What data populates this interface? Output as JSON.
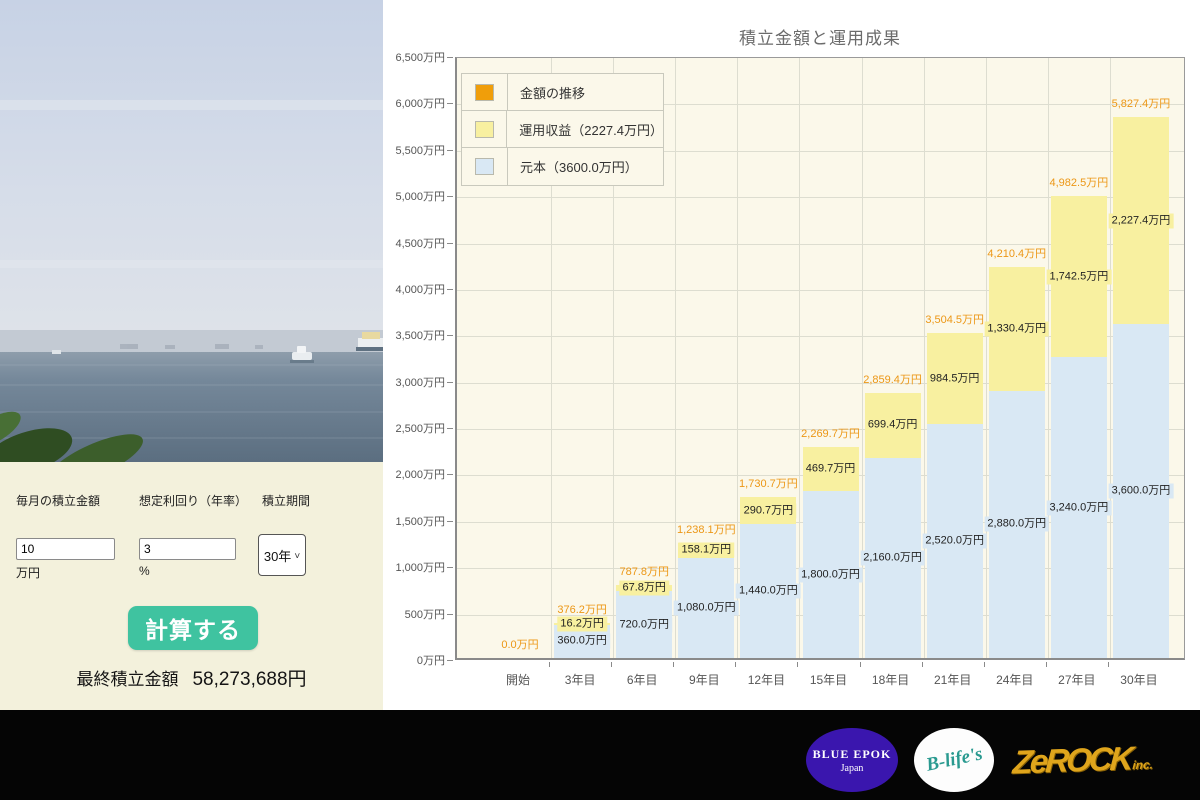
{
  "form": {
    "monthly_label": "毎月の積立金額",
    "monthly_value": "10",
    "monthly_unit": "万円",
    "rate_label": "想定利回り（年率）",
    "rate_value": "3",
    "rate_unit": "%",
    "period_label": "積立期間",
    "period_value": "30年",
    "calc_button_label": "計算する",
    "result_label": "最終積立金額",
    "result_value": "58,273,688円"
  },
  "chart_data": {
    "type": "bar",
    "subtype": "stacked",
    "title": "積立金額と運用成果",
    "categories": [
      "開始",
      "3年目",
      "6年目",
      "9年目",
      "12年目",
      "15年目",
      "18年目",
      "21年目",
      "24年目",
      "27年目",
      "30年目"
    ],
    "series": [
      {
        "name": "元本（3600.0万円）",
        "color": "#d9e8f4",
        "values": [
          0,
          360.0,
          720.0,
          1080.0,
          1440.0,
          1800.0,
          2160.0,
          2520.0,
          2880.0,
          3240.0,
          3600.0
        ],
        "labels": [
          "",
          "360.0万円",
          "720.0万円",
          "1,080.0万円",
          "1,440.0万円",
          "1,800.0万円",
          "2,160.0万円",
          "2,520.0万円",
          "2,880.0万円",
          "3,240.0万円",
          "3,600.0万円"
        ]
      },
      {
        "name": "運用収益（2227.4万円）",
        "color": "#f8f0a0",
        "values": [
          0,
          16.2,
          67.8,
          158.1,
          290.7,
          469.7,
          699.4,
          984.5,
          1330.4,
          1742.5,
          2227.4
        ],
        "labels": [
          "",
          "16.2万円",
          "67.8万円",
          "158.1万円",
          "290.7万円",
          "469.7万円",
          "699.4万円",
          "984.5万円",
          "1,330.4万円",
          "1,742.5万円",
          "2,227.4万円"
        ]
      }
    ],
    "totals": [
      0.0,
      376.2,
      787.8,
      1238.1,
      1730.7,
      2269.7,
      2859.4,
      3504.5,
      4210.4,
      4982.5,
      5827.4
    ],
    "total_labels": [
      "0.0万円",
      "376.2万円",
      "787.8万円",
      "1,238.1万円",
      "1,730.7万円",
      "2,269.7万円",
      "2,859.4万円",
      "3,504.5万円",
      "4,210.4万円",
      "4,982.5万円",
      "5,827.4万円"
    ],
    "legend": [
      {
        "label": "金額の推移",
        "color": "#f09e0a"
      },
      {
        "label": "運用収益（2227.4万円）",
        "color": "#f8f0a0"
      },
      {
        "label": "元本（3600.0万円）",
        "color": "#d9e8f4"
      }
    ],
    "legend_position": "upper-left",
    "grid": true,
    "ylim": [
      0,
      6500
    ],
    "y_ticks": [
      "6,500万円",
      "6,000万円",
      "5,500万円",
      "5,000万円",
      "4,500万円",
      "4,000万円",
      "3,500万円",
      "3,000万円",
      "2,500万円",
      "2,000万円",
      "1,500万円",
      "1,000万円",
      "500万円",
      "0万円"
    ],
    "total_label_color": "#ec9716"
  },
  "footer": {
    "logo1_line1": "BLUE EPOK",
    "logo1_line2": "Japan",
    "logo2_text": "B-life's",
    "logo3_text": "ZeROCK",
    "logo3_suffix": "inc."
  },
  "colors": {
    "accent_button": "#3fc3a0",
    "form_background": "#f3f1dc",
    "plot_background": "#fbf8ea",
    "panel_background": "#ffffff",
    "footer_background": "#050505"
  }
}
